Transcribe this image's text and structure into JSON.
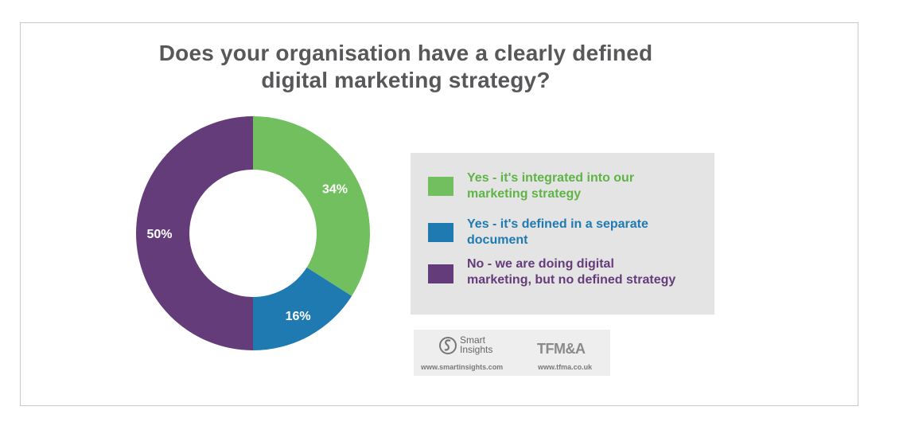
{
  "chart_data": {
    "type": "pie",
    "title": "Does your organisation have a clearly defined digital marketing strategy?",
    "title_lines": [
      "Does your organisation have a clearly defined",
      "digital marketing strategy?"
    ],
    "slices": [
      {
        "label": "Yes - it's integrated into our marketing strategy",
        "legend_lines": [
          "Yes - it's integrated into our",
          "marketing strategy"
        ],
        "value": 34,
        "display": "34%",
        "color": "#72bf5f"
      },
      {
        "label": "Yes - it's defined in a separate document",
        "legend_lines": [
          "Yes - it's defined in a separate",
          "document"
        ],
        "value": 16,
        "display": "16%",
        "color": "#1f7ab1"
      },
      {
        "label": "No - we are doing digital marketing, but no defined strategy",
        "legend_lines": [
          "No - we are doing digital",
          "marketing, but no defined strategy"
        ],
        "value": 50,
        "display": "50%",
        "color": "#653c7a"
      }
    ],
    "hole": "donut",
    "legend_position": "right"
  },
  "legend_text_colors": [
    "#5fb347",
    "#1f7ab1",
    "#653c7a"
  ],
  "logos": {
    "smart_insights": {
      "name_line1": "Smart",
      "name_line2": "Insights",
      "url": "www.smartinsights.com"
    },
    "tfma": {
      "name": "TFM&A",
      "url": "www.tfma.co.uk"
    }
  }
}
